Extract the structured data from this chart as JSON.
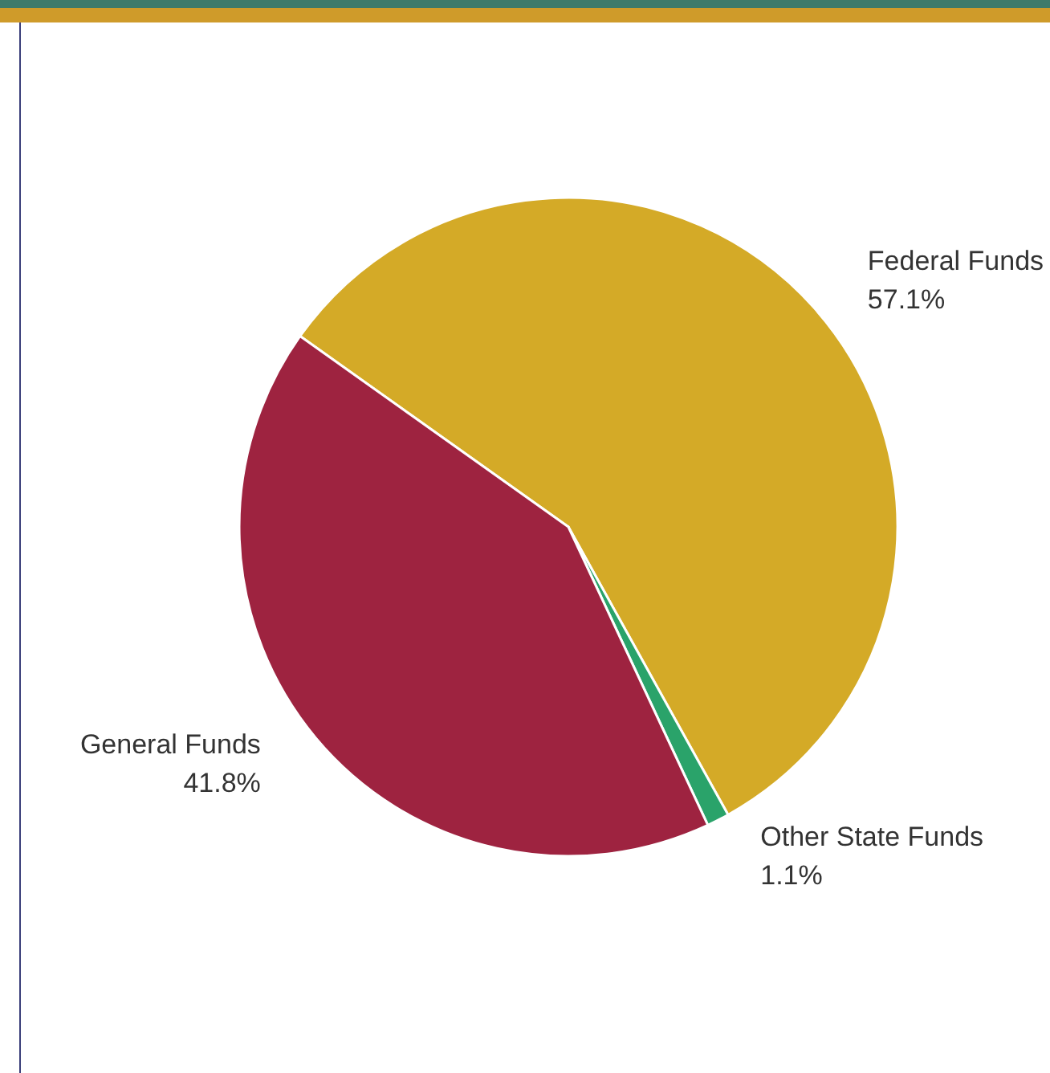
{
  "chart_data": {
    "type": "pie",
    "categories": [
      "Federal Funds",
      "Other State Funds",
      "General Funds"
    ],
    "values": [
      57.1,
      1.1,
      41.8
    ],
    "colors": [
      "#d4aa27",
      "#2aa36a",
      "#9e2340"
    ],
    "value_labels": [
      "57.1%",
      "1.1%",
      "41.8%"
    ],
    "legend": false
  }
}
